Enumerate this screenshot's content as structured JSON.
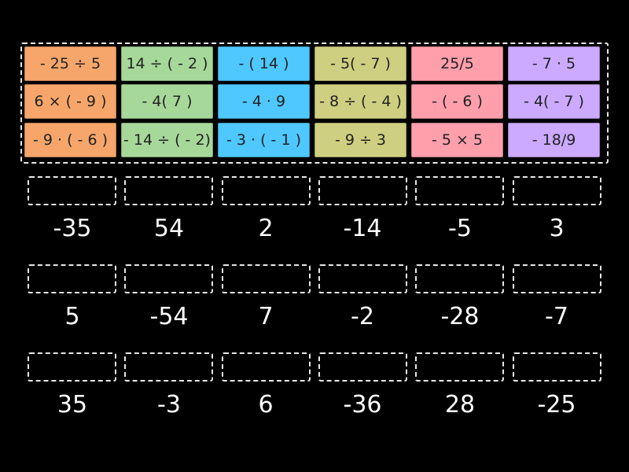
{
  "colors": {
    "background": "#000000",
    "columns": [
      "#f6a66a",
      "#a6d89a",
      "#4ec8ff",
      "#cfcf82",
      "#ff9fac",
      "#cbaaff"
    ]
  },
  "tiles": [
    [
      {
        "label": "- 25 ÷ 5"
      },
      {
        "label": "14 ÷ ( - 2 )"
      },
      {
        "label": "- ( 14 )"
      },
      {
        "label": "- 5( - 7 )"
      },
      {
        "label": "25/5"
      },
      {
        "label": "- 7 · 5"
      }
    ],
    [
      {
        "label": "6 × ( - 9 )"
      },
      {
        "label": "- 4( 7 )"
      },
      {
        "label": "- 4 · 9"
      },
      {
        "label": "- 8 ÷ ( - 4 )"
      },
      {
        "label": "- ( - 6 )"
      },
      {
        "label": "- 4( - 7 )"
      }
    ],
    [
      {
        "label": "- 9 · ( - 6 )"
      },
      {
        "label": "- 14 ÷ ( - 2)"
      },
      {
        "label": "- 3 · ( - 1 )"
      },
      {
        "label": "- 9 ÷ 3"
      },
      {
        "label": "- 5 × 5"
      },
      {
        "label": "- 18/9"
      }
    ]
  ],
  "answers": [
    [
      "-35",
      "54",
      "2",
      "-14",
      "-5",
      "3"
    ],
    [
      "5",
      "-54",
      "7",
      "-2",
      "-28",
      "-7"
    ],
    [
      "35",
      "-3",
      "6",
      "-36",
      "28",
      "-25"
    ]
  ]
}
